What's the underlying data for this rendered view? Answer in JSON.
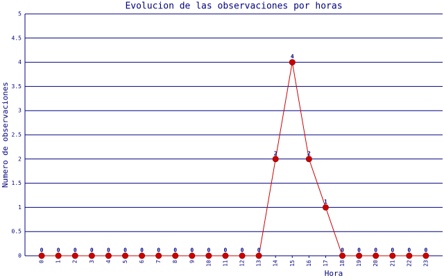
{
  "chart_data": {
    "type": "line",
    "title": "Evolucion de las observaciones por horas",
    "x_label": "Hora",
    "y_label": "Numero de observaciones",
    "categories": [
      "0",
      "1",
      "2",
      "3",
      "4",
      "5",
      "6",
      "7",
      "8",
      "9",
      "10",
      "11",
      "12",
      "13",
      "14",
      "15",
      "16",
      "17",
      "18",
      "19",
      "20",
      "21",
      "22",
      "23"
    ],
    "series": [
      {
        "name": "observaciones",
        "color": "#cc0000",
        "values": [
          0,
          0,
          0,
          0,
          0,
          0,
          0,
          0,
          0,
          0,
          0,
          0,
          0,
          0,
          2,
          4,
          2,
          1,
          0,
          0,
          0,
          0,
          0,
          0
        ]
      }
    ],
    "ylim": [
      0,
      5
    ],
    "yticks": [
      0,
      0.5,
      1,
      1.5,
      2,
      2.5,
      3,
      3.5,
      4,
      4.5,
      5
    ],
    "grid": true
  }
}
